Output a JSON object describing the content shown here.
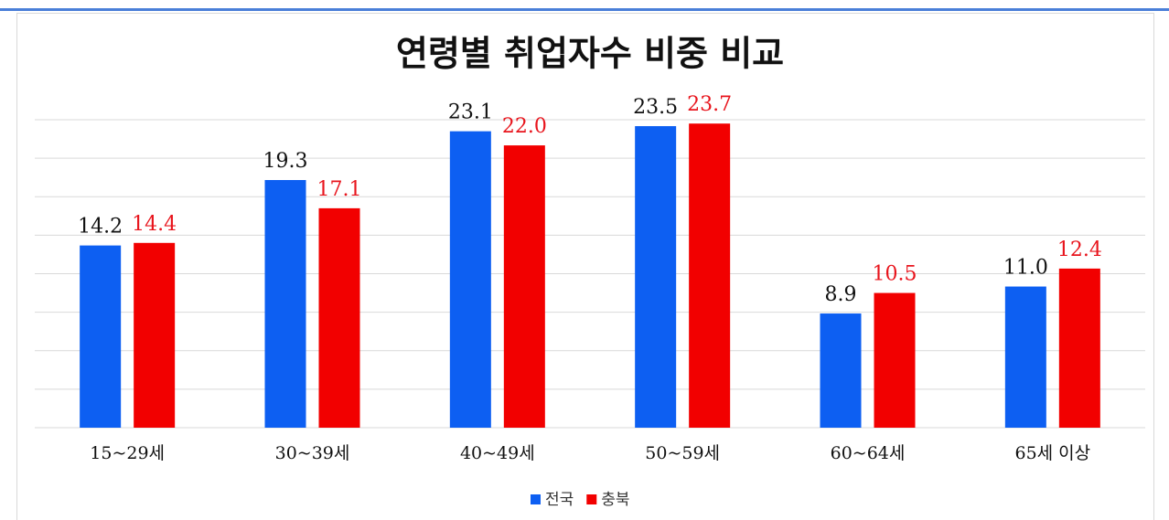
{
  "chart_data": {
    "type": "bar",
    "title": "연령별 취업자수 비중 비교",
    "categories": [
      "15~29세",
      "30~39세",
      "40~49세",
      "50~59세",
      "60~64세",
      "65세 이상"
    ],
    "series": [
      {
        "name": "전국",
        "color": "#0d5ff2",
        "label_color": "#111111",
        "values": [
          14.2,
          19.3,
          23.1,
          23.5,
          8.9,
          11.0
        ],
        "value_labels": [
          "14.2",
          "19.3",
          "23.1",
          "23.5",
          "8.9",
          "11.0"
        ]
      },
      {
        "name": "충북",
        "color": "#f20000",
        "label_color": "#e8141c",
        "values": [
          14.4,
          17.1,
          22.0,
          23.7,
          10.5,
          12.4
        ],
        "value_labels": [
          "14.4",
          "17.1",
          "22.0",
          "23.7",
          "10.5",
          "12.4"
        ]
      }
    ],
    "ylim": [
      0,
      24
    ],
    "yticks": [
      0,
      3,
      6,
      9,
      12,
      15,
      18,
      21,
      24
    ],
    "grid": true
  }
}
